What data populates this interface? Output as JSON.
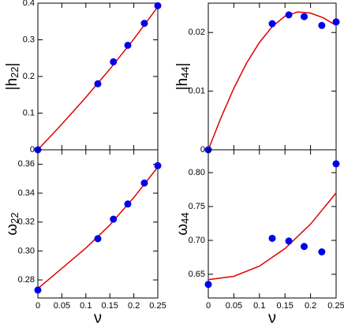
{
  "chart_data": [
    {
      "type": "scatter",
      "ylabel": [
        "|h",
        "22",
        "|"
      ],
      "xlim": [
        0,
        0.25
      ],
      "xticks": [
        0,
        0.05,
        0.1,
        0.15,
        0.2,
        0.25
      ],
      "show_xticklabels": false,
      "ylim": [
        0,
        0.4
      ],
      "yticks": [
        0,
        0.1,
        0.2,
        0.3,
        0.4
      ],
      "color": "#0000ee",
      "x": [
        0,
        0.125,
        0.1575,
        0.1875,
        0.222,
        0.25
      ],
      "values": [
        0,
        0.18,
        0.24,
        0.285,
        0.345,
        0.393
      ],
      "fit": {
        "color": "#e00000",
        "x": [
          0,
          0.05,
          0.1,
          0.15,
          0.2,
          0.25
        ],
        "values": [
          0,
          0.07,
          0.143,
          0.22,
          0.302,
          0.39
        ]
      }
    },
    {
      "type": "scatter",
      "ylabel": [
        "ω",
        "22"
      ],
      "xlabel": "ν",
      "xlim": [
        0,
        0.25
      ],
      "xticks": [
        0,
        0.05,
        0.1,
        0.15,
        0.2,
        0.25
      ],
      "show_xticklabels": true,
      "ylim": [
        0.2675,
        0.37
      ],
      "yticks": [
        0.28,
        {
          "value": 0.3,
          "label": "0.30"
        },
        0.32,
        0.34,
        0.36
      ],
      "color": "#0000ee",
      "x": [
        0,
        0.125,
        0.1575,
        0.1875,
        0.222,
        0.25
      ],
      "values": [
        0.273,
        0.3085,
        0.322,
        0.3325,
        0.347,
        0.359
      ],
      "fit": {
        "color": "#e00000",
        "x": [
          0,
          0.05,
          0.1,
          0.15,
          0.2,
          0.25
        ],
        "values": [
          0.274,
          0.288,
          0.302,
          0.318,
          0.337,
          0.358
        ]
      }
    },
    {
      "type": "scatter",
      "ylabel": [
        "|h",
        "44",
        "|"
      ],
      "xlim": [
        0,
        0.25
      ],
      "xticks": [
        0,
        0.05,
        0.1,
        0.15,
        0.2,
        0.25
      ],
      "show_xticklabels": false,
      "ylim": [
        0,
        0.025
      ],
      "yticks": [
        0,
        0.01,
        0.02
      ],
      "color": "#0000ee",
      "x": [
        0,
        0.125,
        0.1575,
        0.1875,
        0.222,
        0.25
      ],
      "values": [
        0,
        0.0215,
        0.023,
        0.0227,
        0.0212,
        0.0218
      ],
      "fit": {
        "color": "#e00000",
        "x": [
          0,
          0.025,
          0.05,
          0.075,
          0.1,
          0.125,
          0.15,
          0.175,
          0.2,
          0.225,
          0.25
        ],
        "values": [
          0,
          0.0055,
          0.0105,
          0.0148,
          0.0183,
          0.021,
          0.0228,
          0.0235,
          0.0233,
          0.0225,
          0.0212
        ]
      }
    },
    {
      "type": "scatter",
      "ylabel": [
        "ω",
        "44"
      ],
      "xlabel": "ν",
      "xlim": [
        0,
        0.25
      ],
      "xticks": [
        0,
        0.05,
        0.1,
        0.15,
        0.2,
        0.25
      ],
      "show_xticklabels": true,
      "ylim": [
        0.615,
        0.8337
      ],
      "yticks": [
        0.65,
        {
          "value": 0.7,
          "label": "0.70"
        },
        0.75,
        {
          "value": 0.8,
          "label": "0.80"
        }
      ],
      "color": "#0000ee",
      "x": [
        0,
        0.125,
        0.1575,
        0.1875,
        0.222,
        0.25
      ],
      "values": [
        0.635,
        0.703,
        0.699,
        0.691,
        0.683,
        0.813
      ],
      "fit": {
        "color": "#e00000",
        "x": [
          0,
          0.05,
          0.1,
          0.15,
          0.2,
          0.25
        ],
        "values": [
          0.642,
          0.647,
          0.662,
          0.688,
          0.724,
          0.77
        ]
      }
    }
  ]
}
